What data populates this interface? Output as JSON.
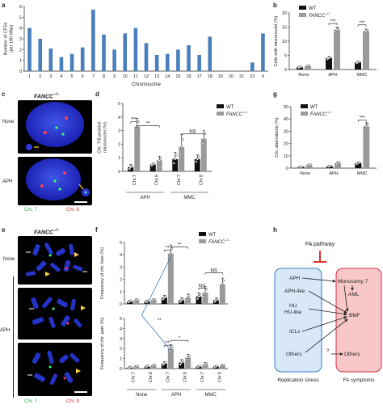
{
  "panel_letters": {
    "a": "a",
    "b": "b",
    "c": "c",
    "d": "d",
    "e": "e",
    "f": "f",
    "g": "g",
    "h": "h"
  },
  "micrographs": {
    "c_title": "FANCC",
    "c_title_sup": "−/−",
    "c_rows": [
      "None",
      "APH"
    ],
    "c_legend": {
      "chr7": "Chr. 7",
      "chr8": "Chr. 8"
    },
    "e_title": "FANCC",
    "e_title_sup": "−/−",
    "e_rows": [
      "None",
      "APH"
    ],
    "e_legend": {
      "chr7": "Chr. 7",
      "chr8": "Chr. 8"
    }
  },
  "colors": {
    "wt": "#111111",
    "fancc": "#9a9a9a",
    "bar_a": "#4a7fbd",
    "stress_box": "#d8e8f8",
    "symptom_box": "#f8c8c8",
    "inhibit": "#e0302a",
    "connector": "#3b78c4"
  },
  "chart_data": [
    {
      "id": "a",
      "type": "bar",
      "ylabel": "Number of CFSs\n(per 100 Mbp)",
      "xlabel": "Chromosome",
      "ylim": [
        0,
        6
      ],
      "yticks": [
        0,
        1,
        2,
        3,
        4,
        5,
        6
      ],
      "categories": [
        "1",
        "2",
        "3",
        "4",
        "5",
        "6",
        "7",
        "8",
        "9",
        "10",
        "11",
        "12",
        "13",
        "14",
        "15",
        "16",
        "17",
        "18",
        "19",
        "20",
        "21",
        "22",
        "X"
      ],
      "values": [
        4.0,
        3.0,
        2.1,
        1.3,
        1.6,
        2.2,
        5.7,
        3.4,
        2.0,
        3.5,
        4.0,
        2.6,
        1.5,
        1.6,
        2.0,
        2.4,
        1.5,
        3.2,
        0,
        0,
        0,
        0.8,
        3.5
      ]
    },
    {
      "id": "b",
      "type": "bar",
      "ylabel": "Cells with micronuclei (%)",
      "ylim": [
        0,
        20
      ],
      "yticks": [
        0,
        5,
        10,
        15,
        20
      ],
      "categories": [
        "None",
        "APH",
        "MMC"
      ],
      "series": [
        {
          "name": "WT",
          "values": [
            0.8,
            4.0,
            2.5
          ],
          "err": [
            0.3,
            0.6,
            0.4
          ]
        },
        {
          "name": "FANCC",
          "name_sup": "−/−",
          "values": [
            1.2,
            14.0,
            13.5
          ],
          "err": [
            0.3,
            1.0,
            0.8
          ]
        }
      ],
      "significance": [
        "***",
        "***"
      ]
    },
    {
      "id": "d",
      "type": "bar",
      "ylabel": "Chr. 7/8-positive\nmicronuclei (%)",
      "ylim": [
        0,
        5
      ],
      "yticks": [
        0,
        1,
        2,
        3,
        4,
        5
      ],
      "groups": [
        "APH",
        "MMC"
      ],
      "categories": [
        "Chr.7",
        "Chr.8",
        "Chr.7",
        "Chr.8"
      ],
      "series": [
        {
          "name": "WT",
          "values": [
            0.3,
            0.5,
            0.9,
            0.9
          ],
          "err": [
            0.2,
            0.1,
            0.5,
            0.3
          ]
        },
        {
          "name": "FANCC",
          "name_sup": "−/−",
          "values": [
            3.3,
            0.8,
            1.8,
            2.4
          ],
          "err": [
            0.6,
            0.3,
            0.9,
            0.6
          ]
        }
      ],
      "significance": [
        "***",
        "**",
        "NS"
      ]
    },
    {
      "id": "g",
      "type": "bar",
      "ylabel": "Chr. aberrations (%)",
      "ylim": [
        0,
        50
      ],
      "yticks": [
        0,
        10,
        20,
        30,
        40,
        50
      ],
      "categories": [
        "None",
        "APH",
        "MMC"
      ],
      "series": [
        {
          "name": "WT",
          "values": [
            1.0,
            1.5,
            4.0
          ],
          "err": [
            0.4,
            0.5,
            1.0
          ]
        },
        {
          "name": "FANCC",
          "name_sup": "−/−",
          "values": [
            2.5,
            4.0,
            34.0
          ],
          "err": [
            0.6,
            1.2,
            3.0
          ]
        }
      ],
      "significance": [
        "***"
      ]
    },
    {
      "id": "f",
      "type": "bar",
      "panels": [
        {
          "ylabel": "Frequency of chr. loss (%)",
          "ylim": [
            0,
            5
          ],
          "yticks": [
            0,
            1,
            2,
            3,
            4,
            5
          ],
          "series": [
            {
              "name": "WT",
              "values": [
                0.2,
                0.2,
                0.5,
                0.3,
                0.6,
                0.3
              ],
              "err": [
                0.1,
                0.1,
                0.2,
                0.2,
                0.3,
                0.2
              ]
            },
            {
              "name": "FANCC",
              "name_sup": "−/−",
              "values": [
                0.3,
                0.3,
                4.1,
                0.5,
                0.9,
                1.6
              ],
              "err": [
                0.1,
                0.1,
                0.7,
                0.3,
                0.5,
                0.5
              ]
            }
          ],
          "significance": [
            "**",
            "**",
            "NS",
            "NS"
          ]
        },
        {
          "ylabel": "Frequency of chr. gain (%)",
          "ylim": [
            0,
            5
          ],
          "yticks": [
            0,
            1,
            2,
            3,
            4,
            5
          ],
          "series": [
            {
              "name": "WT",
              "values": [
                0.1,
                0.2,
                0.5,
                0.6,
                0.2,
                0.2
              ],
              "err": [
                0.1,
                0.1,
                0.2,
                0.3,
                0.1,
                0.1
              ]
            },
            {
              "name": "FANCC",
              "name_sup": "−/−",
              "values": [
                0.2,
                0.3,
                2.0,
                1.1,
                0.4,
                0.3
              ],
              "err": [
                0.1,
                0.1,
                0.4,
                0.3,
                0.2,
                0.1
              ]
            }
          ],
          "significance": [
            "**",
            "*"
          ],
          "connector_label": "**"
        }
      ],
      "categories": [
        "Chr.7",
        "Chr.8",
        "Chr.7",
        "Chr.8",
        "Chr.7",
        "Chr.8"
      ],
      "groups": [
        "None",
        "APH",
        "MMC"
      ]
    }
  ],
  "diagram": {
    "fa_pathway": "FA pathway",
    "left_nodes": [
      "APH",
      "APH-like",
      "HU\nHU-like",
      "ICLs",
      "Others"
    ],
    "right_nodes": [
      "Monosomy 7",
      "AML",
      "BMF",
      "Others"
    ],
    "question": "?",
    "left_caption": "Replication stress",
    "right_caption": "FA symptoms"
  }
}
